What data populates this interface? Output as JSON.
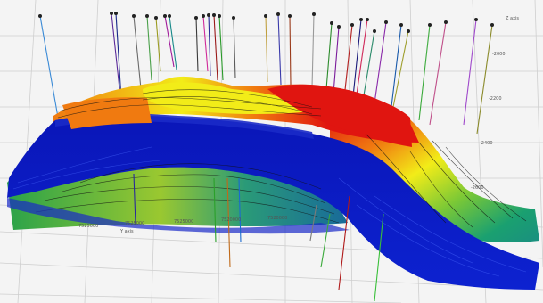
{
  "viewer": {
    "axis_labels": {
      "z_axis": "Z axis",
      "y_axis": "Y axis",
      "x_ticks": [
        "7525000",
        "7525000",
        "7525000",
        "7520000",
        "7520000"
      ],
      "z_ticks": [
        "-2000",
        "-2200",
        "-2400",
        "-2600"
      ]
    },
    "colors": {
      "blue_layer": "#0a16b8",
      "red_top": "#e01510",
      "orange": "#f07a10",
      "yellow": "#f2ec18",
      "green": "#2aa24a",
      "teal": "#1a8f80",
      "grid": "#c8c8c8",
      "background": "#f4f4f4"
    }
  }
}
